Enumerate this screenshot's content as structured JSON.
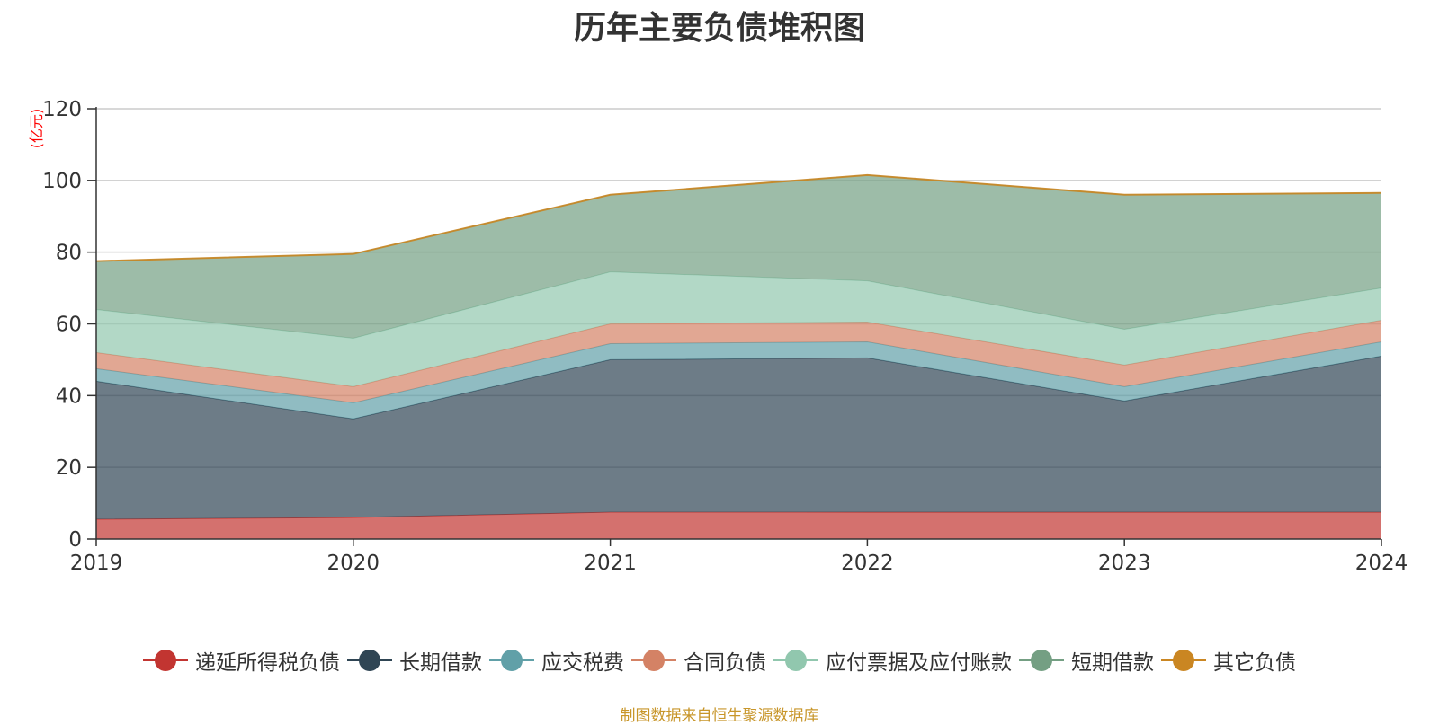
{
  "chart_data": {
    "type": "area",
    "title": "历年主要负债堆积图",
    "unit_label": "(亿元)",
    "x": [
      "2019",
      "2020",
      "2021",
      "2022",
      "2023",
      "2024"
    ],
    "ylim": [
      0,
      120
    ],
    "yticks": [
      0,
      20,
      40,
      60,
      80,
      100,
      120
    ],
    "stacked": true,
    "grid": true,
    "legend_position": "bottom",
    "series": [
      {
        "name": "递延所得税负债",
        "color": "#c23531",
        "values": [
          5.5,
          6.0,
          7.5,
          7.5,
          7.5,
          7.5
        ]
      },
      {
        "name": "长期借款",
        "color": "#2f4554",
        "values": [
          38.5,
          27.5,
          42.5,
          43.0,
          31.0,
          43.5
        ]
      },
      {
        "name": "应交税费",
        "color": "#61a0a8",
        "values": [
          3.5,
          4.5,
          4.5,
          4.5,
          4.0,
          4.0
        ]
      },
      {
        "name": "合同负债",
        "color": "#d48265",
        "values": [
          4.5,
          4.5,
          5.5,
          5.5,
          6.0,
          6.0
        ]
      },
      {
        "name": "应付票据及应付账款",
        "color": "#91c7ae",
        "values": [
          12.0,
          13.5,
          14.5,
          11.5,
          10.0,
          9.0
        ]
      },
      {
        "name": "短期借款",
        "color": "#749f83",
        "values": [
          13.5,
          23.5,
          21.5,
          29.5,
          37.5,
          26.5
        ]
      },
      {
        "name": "其它负债",
        "color": "#ca8622",
        "values": [
          0.0,
          0.0,
          0.0,
          0.0,
          0.0,
          0.0
        ]
      }
    ]
  },
  "footer": "制图数据来自恒生聚源数据库"
}
